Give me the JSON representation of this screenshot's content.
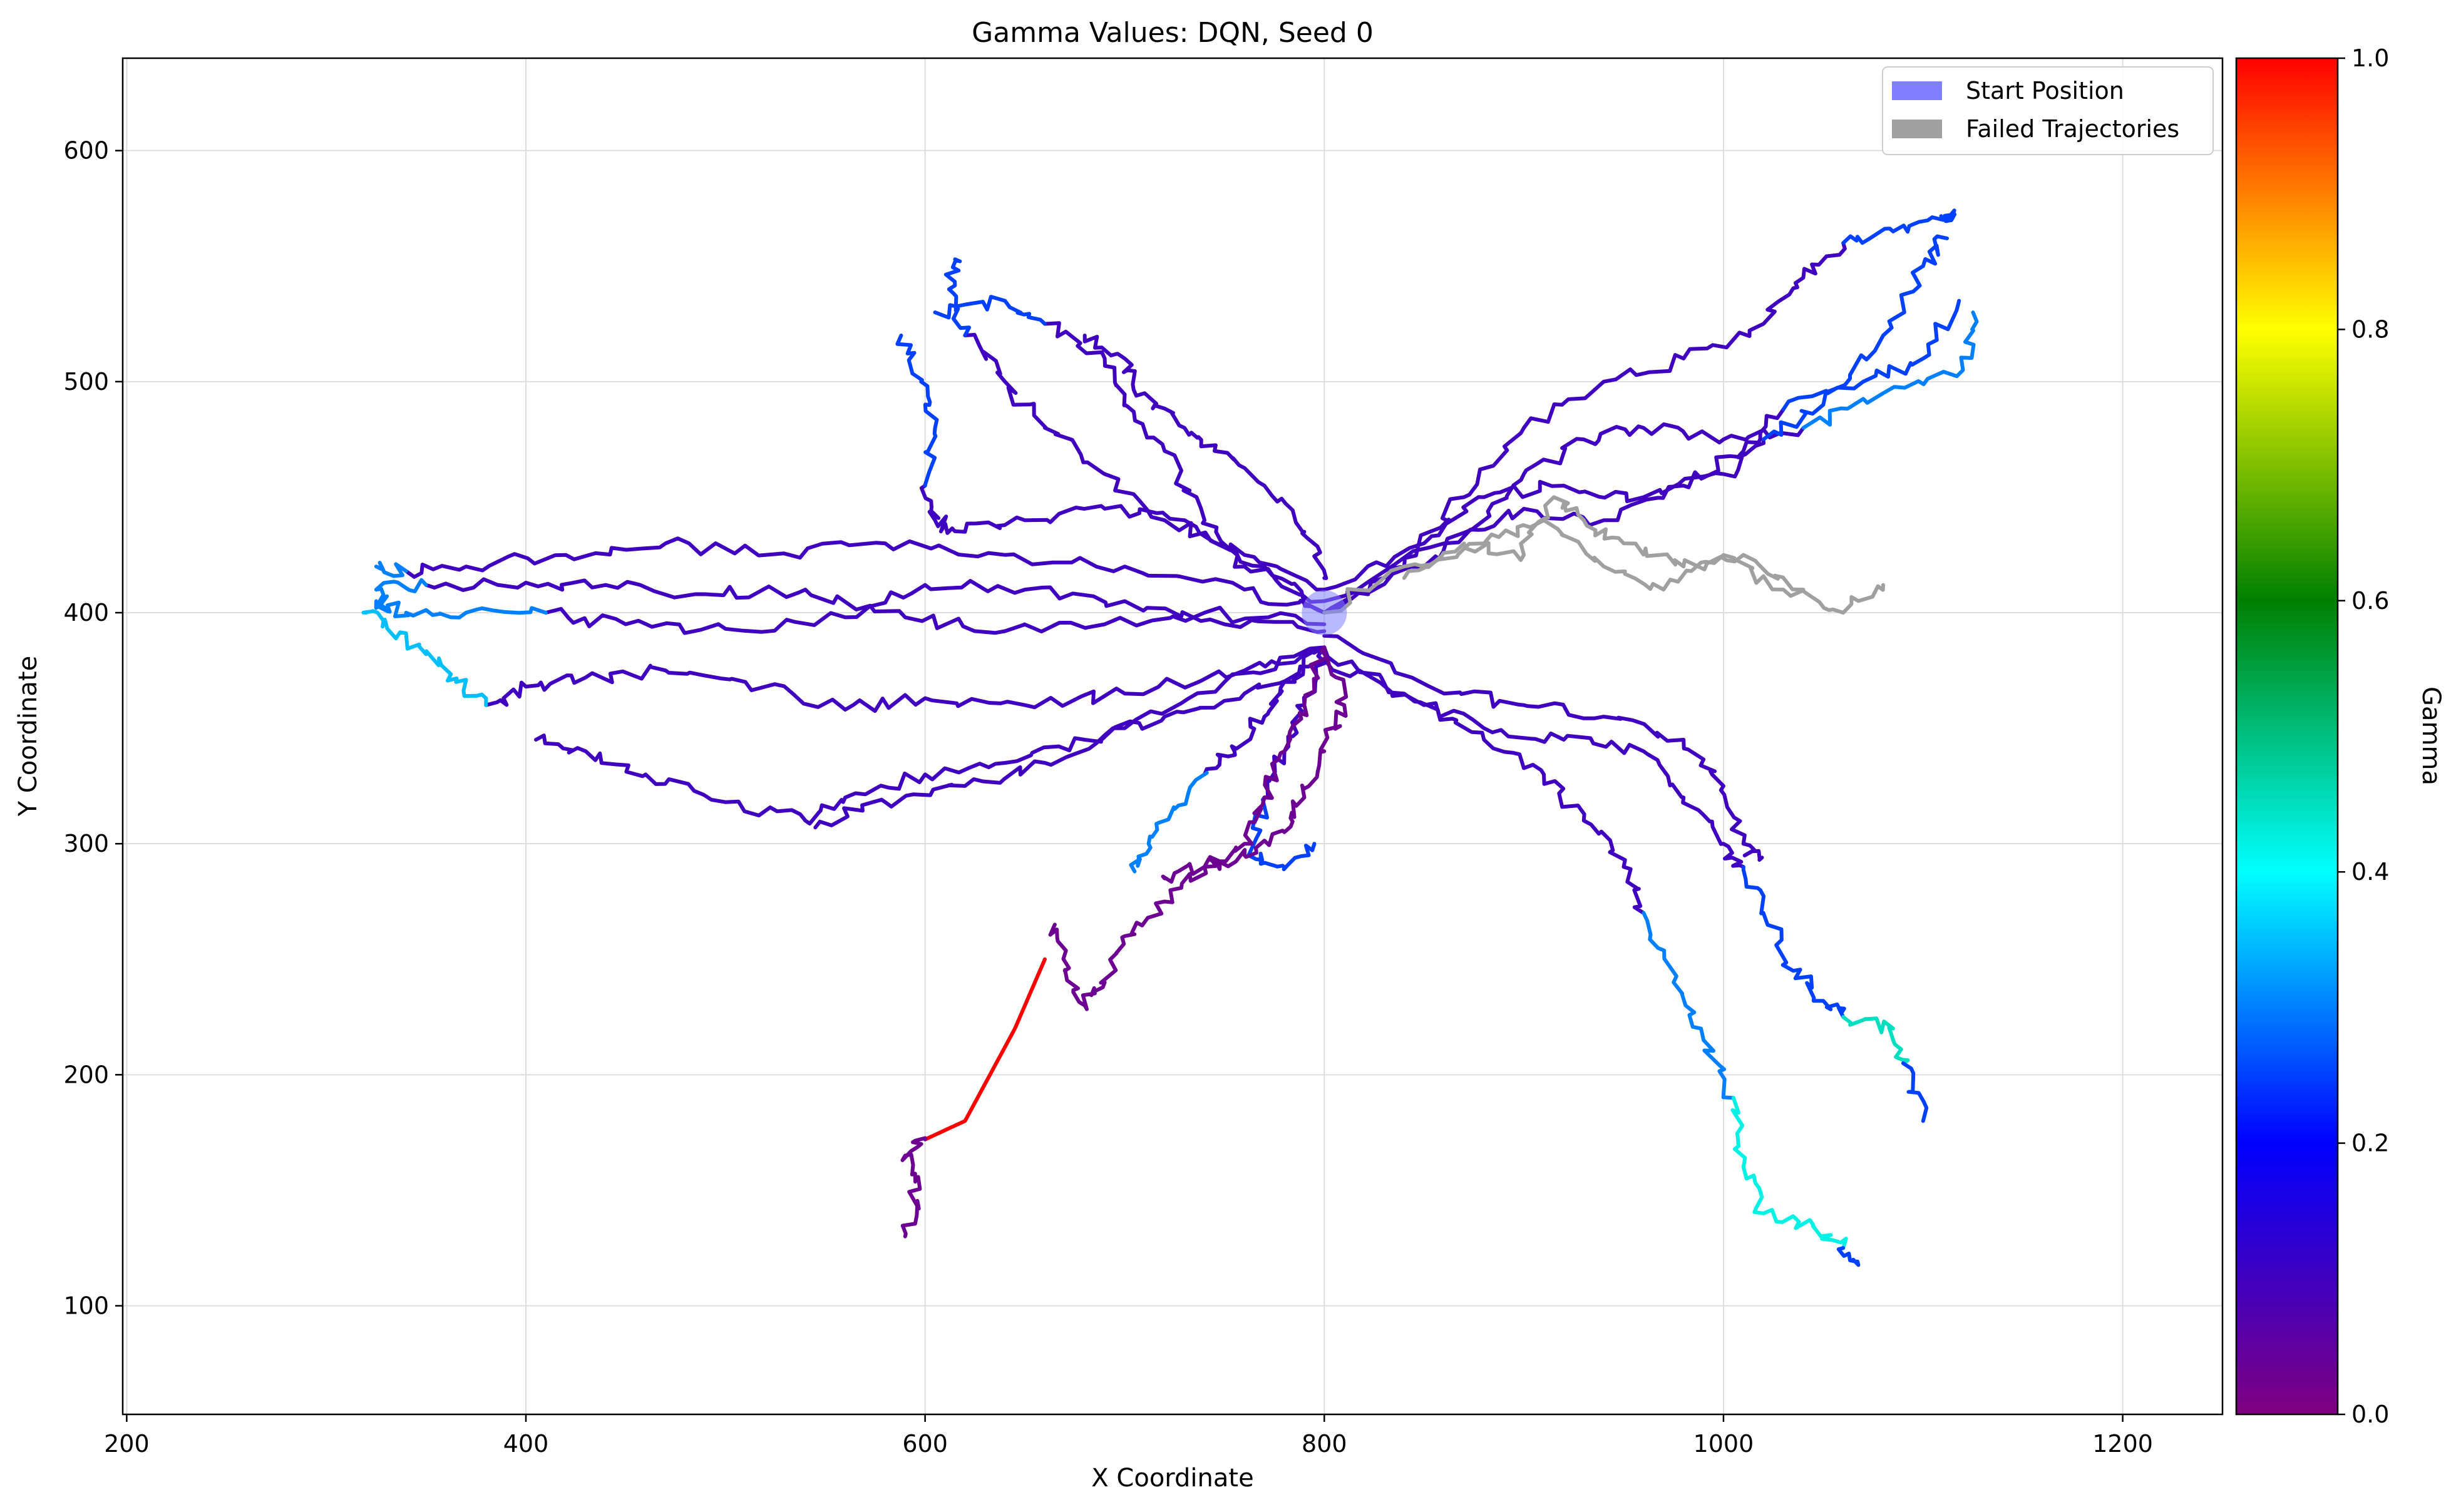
{
  "chart_data": {
    "type": "line",
    "title": "Gamma Values: DQN, Seed 0",
    "xlabel": "X Coordinate",
    "ylabel": "Y Coordinate",
    "xlim": [
      198,
      1250
    ],
    "ylim": [
      53,
      640
    ],
    "xticks": [
      200,
      400,
      600,
      800,
      1000,
      1200
    ],
    "yticks": [
      100,
      200,
      300,
      400,
      500,
      600
    ],
    "grid": true,
    "legend": {
      "placement": "top-right",
      "entries": [
        {
          "label": "Start Position",
          "color": "#8080ff"
        },
        {
          "label": "Failed Trajectories",
          "color": "#a0a0a0"
        }
      ]
    },
    "start_position": {
      "x": 800,
      "y": 400
    },
    "colorbar": {
      "label": "Gamma",
      "range": [
        0,
        1
      ],
      "ticks": [
        "0.0",
        "0.2",
        "0.4",
        "0.6",
        "0.8",
        "1.0"
      ],
      "colormap": [
        "#800080",
        "#0000ff",
        "#00ffff",
        "#008000",
        "#ffff00",
        "#ff0000"
      ]
    },
    "series": [
      {
        "gamma": 0.1,
        "points": [
          [
            800,
            400
          ],
          [
            760,
            410
          ],
          [
            700,
            420
          ],
          [
            640,
            425
          ],
          [
            580,
            430
          ],
          [
            520,
            425
          ],
          [
            470,
            430
          ],
          [
            420,
            425
          ],
          [
            370,
            420
          ],
          [
            340,
            418
          ]
        ]
      },
      {
        "gamma": 0.3,
        "points": [
          [
            340,
            418
          ],
          [
            325,
            420
          ]
        ]
      },
      {
        "gamma": 0.1,
        "points": [
          [
            800,
            395
          ],
          [
            740,
            400
          ],
          [
            690,
            395
          ],
          [
            640,
            392
          ],
          [
            590,
            398
          ],
          [
            540,
            410
          ],
          [
            490,
            408
          ],
          [
            440,
            412
          ],
          [
            400,
            413
          ],
          [
            350,
            412
          ]
        ]
      },
      {
        "gamma": 0.3,
        "points": [
          [
            350,
            412
          ],
          [
            325,
            410
          ],
          [
            330,
            402
          ]
        ]
      },
      {
        "gamma": 0.1,
        "points": [
          [
            800,
            392
          ],
          [
            750,
            395
          ],
          [
            700,
            405
          ],
          [
            650,
            410
          ],
          [
            600,
            412
          ],
          [
            560,
            398
          ],
          [
            500,
            393
          ],
          [
            450,
            395
          ],
          [
            410,
            400
          ]
        ]
      },
      {
        "gamma": 0.3,
        "points": [
          [
            410,
            400
          ],
          [
            370,
            400
          ],
          [
            340,
            400
          ],
          [
            325,
            405
          ]
        ]
      },
      {
        "gamma": 0.1,
        "points": [
          [
            800,
            385
          ],
          [
            760,
            375
          ],
          [
            700,
            365
          ],
          [
            650,
            360
          ],
          [
            600,
            363
          ],
          [
            560,
            358
          ],
          [
            510,
            370
          ],
          [
            470,
            375
          ],
          [
            430,
            372
          ],
          [
            400,
            368
          ],
          [
            380,
            360
          ]
        ]
      },
      {
        "gamma": 0.35,
        "points": [
          [
            380,
            360
          ],
          [
            365,
            370
          ],
          [
            350,
            382
          ],
          [
            330,
            395
          ],
          [
            320,
            400
          ]
        ]
      },
      {
        "gamma": 0.1,
        "points": [
          [
            800,
            380
          ],
          [
            760,
            365
          ],
          [
            720,
            355
          ],
          [
            680,
            345
          ],
          [
            640,
            335
          ],
          [
            600,
            330
          ],
          [
            560,
            320
          ],
          [
            540,
            310
          ],
          [
            500,
            318
          ],
          [
            460,
            330
          ],
          [
            430,
            340
          ],
          [
            405,
            345
          ]
        ]
      },
      {
        "gamma": 0.1,
        "points": [
          [
            800,
            385
          ],
          [
            750,
            370
          ],
          [
            700,
            350
          ],
          [
            660,
            335
          ],
          [
            620,
            325
          ],
          [
            580,
            318
          ],
          [
            545,
            307
          ]
        ]
      },
      {
        "gamma": 0.1,
        "points": [
          [
            800,
            410
          ],
          [
            760,
            425
          ],
          [
            720,
            440
          ],
          [
            690,
            460
          ],
          [
            660,
            480
          ],
          [
            640,
            500
          ],
          [
            620,
            520
          ]
        ]
      },
      {
        "gamma": 0.25,
        "points": [
          [
            620,
            520
          ],
          [
            612,
            540
          ],
          [
            615,
            553
          ]
        ]
      },
      {
        "gamma": 0.1,
        "points": [
          [
            800,
            405
          ],
          [
            760,
            420
          ],
          [
            740,
            440
          ],
          [
            720,
            470
          ],
          [
            700,
            490
          ],
          [
            690,
            510
          ],
          [
            660,
            525
          ]
        ]
      },
      {
        "gamma": 0.25,
        "points": [
          [
            660,
            525
          ],
          [
            640,
            535
          ],
          [
            605,
            530
          ]
        ]
      },
      {
        "gamma": 0.1,
        "points": [
          [
            800,
            415
          ],
          [
            790,
            435
          ],
          [
            770,
            455
          ],
          [
            745,
            470
          ],
          [
            730,
            480
          ],
          [
            710,
            495
          ],
          [
            700,
            510
          ],
          [
            680,
            520
          ]
        ]
      },
      {
        "gamma": 0.1,
        "points": [
          [
            800,
            400
          ],
          [
            770,
            420
          ],
          [
            730,
            440
          ],
          [
            690,
            445
          ],
          [
            650,
            440
          ],
          [
            620,
            435
          ],
          [
            605,
            440
          ],
          [
            600,
            455
          ]
        ]
      },
      {
        "gamma": 0.25,
        "points": [
          [
            600,
            455
          ],
          [
            605,
            480
          ],
          [
            598,
            500
          ],
          [
            588,
            520
          ]
        ]
      },
      {
        "gamma": 0.1,
        "points": [
          [
            800,
            400
          ],
          [
            850,
            420
          ],
          [
            880,
            440
          ],
          [
            900,
            460
          ],
          [
            930,
            475
          ],
          [
            960,
            480
          ],
          [
            1000,
            475
          ],
          [
            1040,
            480
          ]
        ]
      },
      {
        "gamma": 0.3,
        "points": [
          [
            1040,
            480
          ],
          [
            1080,
            495
          ],
          [
            1120,
            505
          ],
          [
            1125,
            530
          ]
        ]
      },
      {
        "gamma": 0.1,
        "points": [
          [
            800,
            400
          ],
          [
            840,
            420
          ],
          [
            870,
            450
          ],
          [
            900,
            480
          ],
          [
            940,
            500
          ],
          [
            980,
            510
          ],
          [
            1020,
            525
          ],
          [
            1040,
            545
          ],
          [
            1060,
            560
          ]
        ]
      },
      {
        "gamma": 0.25,
        "points": [
          [
            1060,
            560
          ],
          [
            1085,
            565
          ],
          [
            1110,
            570
          ],
          [
            1115,
            572
          ]
        ]
      },
      {
        "gamma": 0.1,
        "points": [
          [
            800,
            405
          ],
          [
            860,
            430
          ],
          [
            900,
            445
          ],
          [
            940,
            440
          ],
          [
            980,
            455
          ],
          [
            1010,
            470
          ],
          [
            1030,
            488
          ]
        ]
      },
      {
        "gamma": 0.25,
        "points": [
          [
            1030,
            488
          ],
          [
            1070,
            500
          ],
          [
            1100,
            510
          ],
          [
            1118,
            535
          ]
        ]
      },
      {
        "gamma": 0.1,
        "points": [
          [
            800,
            410
          ],
          [
            850,
            430
          ],
          [
            880,
            450
          ],
          [
            920,
            455
          ],
          [
            960,
            450
          ],
          [
            1000,
            460
          ],
          [
            1020,
            475
          ]
        ]
      },
      {
        "gamma": 0.25,
        "points": [
          [
            1020,
            475
          ],
          [
            1050,
            490
          ],
          [
            1080,
            520
          ],
          [
            1100,
            550
          ],
          [
            1112,
            562
          ]
        ]
      },
      {
        "gamma": 0.1,
        "points": [
          [
            800,
            385
          ],
          [
            840,
            365
          ],
          [
            880,
            350
          ],
          [
            920,
            345
          ],
          [
            960,
            340
          ],
          [
            980,
            320
          ],
          [
            1000,
            300
          ],
          [
            1010,
            290
          ]
        ]
      },
      {
        "gamma": 0.25,
        "points": [
          [
            1010,
            290
          ],
          [
            1020,
            270
          ],
          [
            1035,
            245
          ],
          [
            1050,
            232
          ],
          [
            1060,
            225
          ]
        ]
      },
      {
        "gamma": 0.45,
        "points": [
          [
            1060,
            225
          ],
          [
            1085,
            220
          ],
          [
            1090,
            205
          ]
        ]
      },
      {
        "gamma": 0.25,
        "points": [
          [
            1090,
            205
          ],
          [
            1100,
            180
          ]
        ]
      },
      {
        "gamma": 0.1,
        "points": [
          [
            800,
            380
          ],
          [
            850,
            360
          ],
          [
            880,
            345
          ],
          [
            910,
            330
          ],
          [
            930,
            310
          ],
          [
            950,
            290
          ],
          [
            960,
            270
          ]
        ]
      },
      {
        "gamma": 0.3,
        "points": [
          [
            960,
            270
          ],
          [
            975,
            240
          ],
          [
            990,
            215
          ],
          [
            1005,
            190
          ]
        ]
      },
      {
        "gamma": 0.42,
        "points": [
          [
            1005,
            190
          ],
          [
            1010,
            160
          ],
          [
            1020,
            140
          ],
          [
            1045,
            135
          ],
          [
            1060,
            125
          ]
        ]
      },
      {
        "gamma": 0.25,
        "points": [
          [
            1060,
            125
          ],
          [
            1065,
            120
          ]
        ]
      },
      {
        "gamma": 0.1,
        "points": [
          [
            800,
            390
          ],
          [
            860,
            365
          ],
          [
            900,
            360
          ],
          [
            940,
            355
          ],
          [
            980,
            345
          ],
          [
            1000,
            325
          ],
          [
            1010,
            300
          ],
          [
            1018,
            293
          ]
        ]
      },
      {
        "gamma": 0.1,
        "points": [
          [
            800,
            385
          ],
          [
            780,
            370
          ],
          [
            770,
            355
          ],
          [
            755,
            340
          ],
          [
            740,
            330
          ]
        ]
      },
      {
        "gamma": 0.3,
        "points": [
          [
            740,
            330
          ],
          [
            725,
            315
          ],
          [
            712,
            300
          ],
          [
            705,
            288
          ]
        ]
      },
      {
        "gamma": 0.1,
        "points": [
          [
            800,
            385
          ],
          [
            790,
            360
          ],
          [
            780,
            340
          ],
          [
            770,
            320
          ]
        ]
      },
      {
        "gamma": 0.25,
        "points": [
          [
            770,
            320
          ],
          [
            762,
            295
          ],
          [
            780,
            290
          ],
          [
            795,
            300
          ]
        ]
      },
      {
        "gamma": 0.03,
        "points": [
          [
            800,
            385
          ],
          [
            790,
            360
          ],
          [
            780,
            340
          ],
          [
            770,
            320
          ],
          [
            760,
            300
          ],
          [
            740,
            290
          ],
          [
            720,
            275
          ],
          [
            700,
            260
          ],
          [
            690,
            240
          ],
          [
            680,
            230
          ],
          [
            670,
            245
          ],
          [
            665,
            265
          ]
        ]
      },
      {
        "gamma": 0.03,
        "points": [
          [
            800,
            385
          ],
          [
            810,
            360
          ],
          [
            800,
            340
          ],
          [
            790,
            320
          ],
          [
            780,
            305
          ],
          [
            760,
            295
          ],
          [
            740,
            290
          ],
          [
            720,
            285
          ]
        ]
      },
      {
        "gamma": 1.0,
        "points": [
          [
            660,
            250
          ],
          [
            645,
            220
          ],
          [
            620,
            180
          ],
          [
            600,
            172
          ]
        ]
      },
      {
        "gamma": 0.03,
        "points": [
          [
            600,
            172
          ],
          [
            590,
            165
          ],
          [
            595,
            150
          ],
          [
            590,
            130
          ]
        ]
      },
      {
        "gamma": -1,
        "points": [
          [
            800,
            400
          ],
          [
            840,
            420
          ],
          [
            880,
            430
          ],
          [
            910,
            440
          ],
          [
            940,
            420
          ],
          [
            970,
            410
          ],
          [
            1000,
            425
          ],
          [
            1030,
            410
          ],
          [
            1060,
            400
          ],
          [
            1080,
            412
          ]
        ]
      },
      {
        "gamma": -1,
        "points": [
          [
            840,
            415
          ],
          [
            870,
            430
          ],
          [
            900,
            425
          ],
          [
            915,
            450
          ],
          [
            930,
            440
          ],
          [
            950,
            430
          ],
          [
            980,
            420
          ],
          [
            1010,
            425
          ],
          [
            1040,
            410
          ]
        ]
      }
    ]
  }
}
